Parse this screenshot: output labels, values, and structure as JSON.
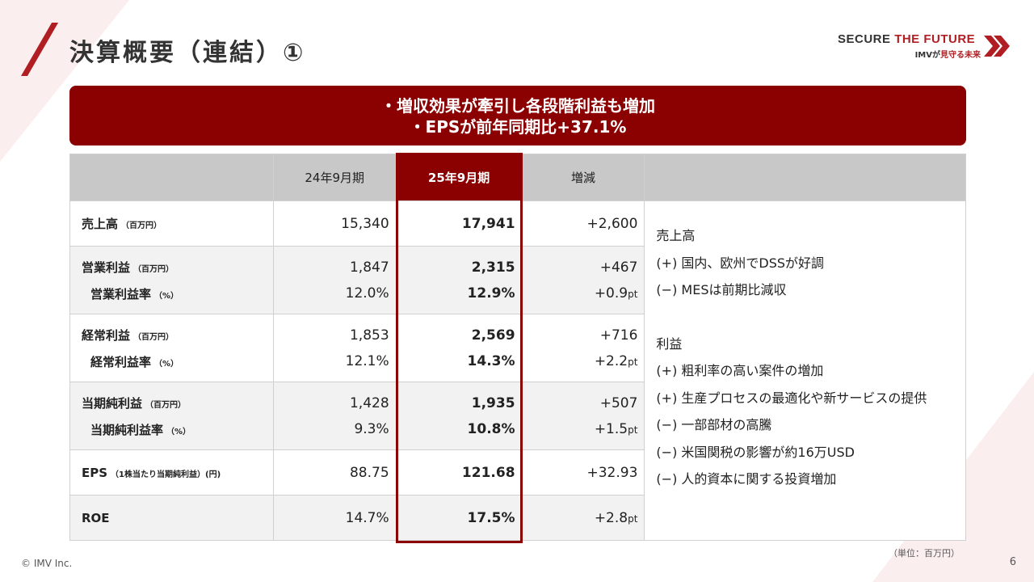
{
  "title": "決算概要（連結）①",
  "brand": {
    "main_a": "SECURE ",
    "main_b": "THE FUTURE",
    "sub_a": "IMVが",
    "sub_b": "見守る未来"
  },
  "banner": {
    "line1": "・増収効果が牽引し各段階利益も増加",
    "line2": "・EPSが前年同期比+37.1%"
  },
  "table": {
    "headers": [
      "24年9月期",
      "25年9月期",
      "増減"
    ],
    "rows": [
      {
        "label": "売上高",
        "unit": "（百万円）",
        "prev": "15,340",
        "curr": "17,941",
        "diff": "+2,600"
      },
      {
        "label": "営業利益",
        "unit": "（百万円）",
        "prev": "1,847",
        "curr": "2,315",
        "diff": "+467",
        "sub_label": "営業利益率",
        "sub_unit": "（%）",
        "sub_prev": "12.0%",
        "sub_curr": "12.9%",
        "sub_diff": "+0.9",
        "sub_diff_unit": "pt"
      },
      {
        "label": "経常利益",
        "unit": "（百万円）",
        "prev": "1,853",
        "curr": "2,569",
        "diff": "+716",
        "sub_label": "経常利益率",
        "sub_unit": "（%）",
        "sub_prev": "12.1%",
        "sub_curr": "14.3%",
        "sub_diff": "+2.2",
        "sub_diff_unit": "pt"
      },
      {
        "label": "当期純利益",
        "unit": "（百万円）",
        "prev": "1,428",
        "curr": "1,935",
        "diff": "+507",
        "sub_label": "当期純利益率",
        "sub_unit": "（%）",
        "sub_prev": "9.3%",
        "sub_curr": "10.8%",
        "sub_diff": "+1.5",
        "sub_diff_unit": "pt"
      },
      {
        "label": "EPS",
        "unit": "（1株当たり当期純利益）(円)",
        "prev": "88.75",
        "curr": "121.68",
        "diff": "+32.93"
      },
      {
        "label": "ROE",
        "prev": "14.7%",
        "curr": "17.5%",
        "diff": "+2.8",
        "diff_unit": "pt"
      }
    ]
  },
  "notes": {
    "sales_title": "売上高",
    "sales_items": [
      "(+) 国内、欧州でDSSが好調",
      "(−) MESは前期比減収"
    ],
    "profit_title": "利益",
    "profit_items": [
      "(+) 粗利率の高い案件の増加",
      "(+) 生産プロセスの最適化や新サービスの提供",
      "(−) 一部部材の高騰",
      "(−) 米国関税の影響が約16万USD",
      "(−) 人的資本に関する投資増加"
    ]
  },
  "unit_note": "（単位：百万円）",
  "copyright": "© IMV Inc.",
  "page_number": "6",
  "colors": {
    "accent": "#8b0000",
    "brand_red": "#b01e23",
    "header_grey": "#c8c8c8"
  }
}
